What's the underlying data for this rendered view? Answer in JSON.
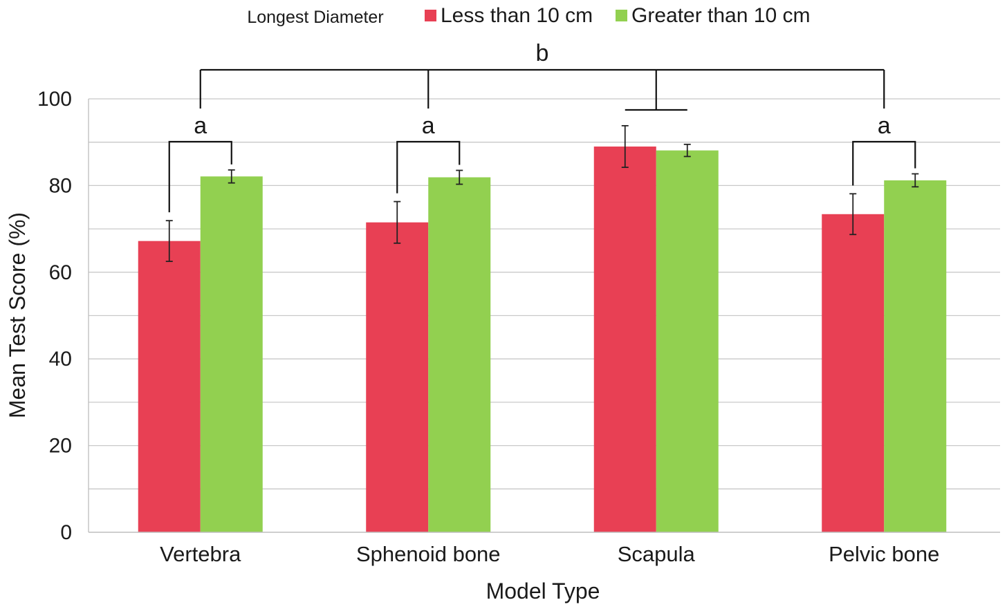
{
  "chart_data": {
    "type": "bar",
    "title": "",
    "xlabel": "Model Type",
    "ylabel": "Mean Test Score (%)",
    "ylim": [
      0,
      100
    ],
    "yticks": [
      0,
      20,
      40,
      60,
      80,
      100
    ],
    "ytick_labels": [
      "0",
      "20",
      "40",
      "60",
      "80",
      "100"
    ],
    "grid": true,
    "categories": [
      "Vertebra",
      "Sphenoid bone",
      "Scapula",
      "Pelvic bone"
    ],
    "legend": {
      "title": "Longest Diameter",
      "position": "top-center"
    },
    "series": [
      {
        "name": "Less than 10 cm",
        "color": "#e84054",
        "values": [
          67.2,
          71.5,
          89.0,
          73.4
        ],
        "errors": [
          4.7,
          4.8,
          4.8,
          4.7
        ]
      },
      {
        "name": "Greater than 10 cm",
        "color": "#92d050",
        "values": [
          82.1,
          81.9,
          88.1,
          81.2
        ],
        "errors": [
          1.5,
          1.6,
          1.4,
          1.5
        ]
      }
    ],
    "annotations": {
      "within_group": {
        "label": "a",
        "categories": [
          0,
          1,
          3
        ]
      },
      "across_groups": {
        "label": "b"
      }
    }
  }
}
